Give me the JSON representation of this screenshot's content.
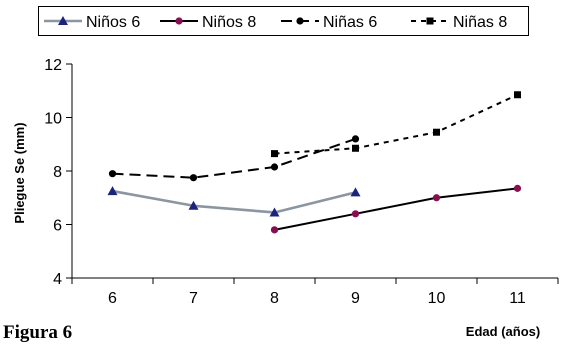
{
  "caption": "Figura 6",
  "chart_data": {
    "type": "line",
    "title": "",
    "xlabel": "Edad (años)",
    "ylabel": "Pliegue Se (mm)",
    "x": [
      6,
      7,
      8,
      9,
      10,
      11
    ],
    "xlim": [
      5.5,
      11.5
    ],
    "ylim": [
      4,
      12
    ],
    "yticks": [
      4,
      6,
      8,
      10,
      12
    ],
    "grid": false,
    "legend_position": "top",
    "series": [
      {
        "name": "Niños 6",
        "color": "#8c96a0",
        "line_style": "solid",
        "marker": "triangle",
        "marker_color": "#1a237e",
        "x": [
          6,
          7,
          8,
          9
        ],
        "values": [
          7.25,
          6.7,
          6.45,
          7.2
        ]
      },
      {
        "name": "Niños 8",
        "color": "#000000",
        "line_style": "solid",
        "marker": "circle",
        "marker_color": "#880e4f",
        "x": [
          8,
          9,
          10,
          11
        ],
        "values": [
          5.8,
          6.4,
          7.0,
          7.35
        ]
      },
      {
        "name": "Niñas 6",
        "color": "#000000",
        "line_style": "long-dash",
        "marker": "circle",
        "marker_color": "#000000",
        "x": [
          6,
          7,
          8,
          9
        ],
        "values": [
          7.9,
          7.75,
          8.15,
          9.2
        ]
      },
      {
        "name": "Niñas 8",
        "color": "#000000",
        "line_style": "short-dash",
        "marker": "square",
        "marker_color": "#000000",
        "x": [
          8,
          9,
          10,
          11
        ],
        "values": [
          8.65,
          8.85,
          9.45,
          10.85
        ]
      }
    ]
  }
}
